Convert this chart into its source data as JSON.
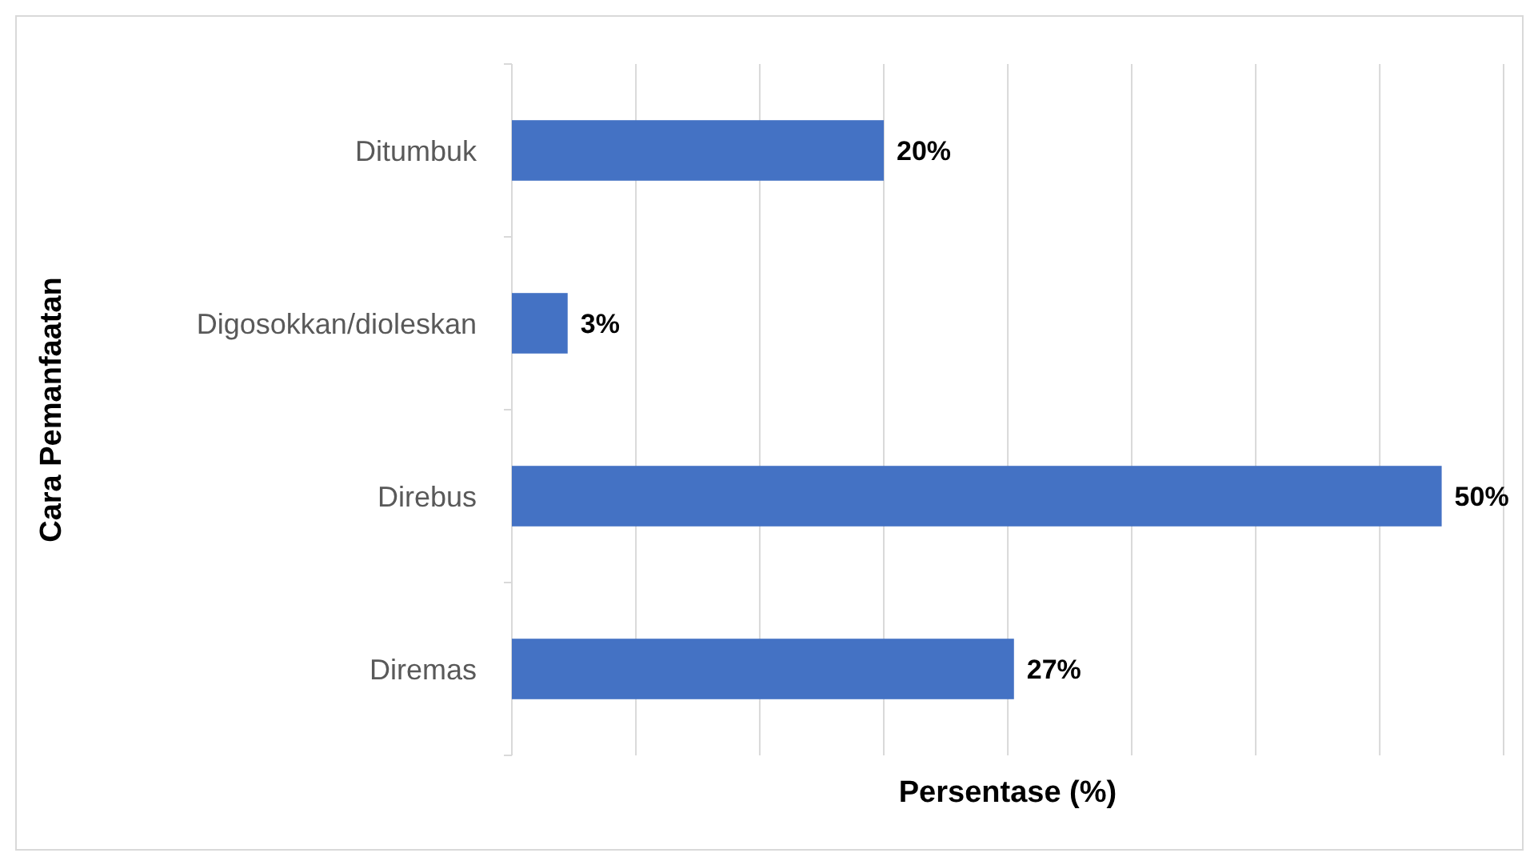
{
  "chart_data": {
    "type": "bar",
    "orientation": "horizontal",
    "categories": [
      "Ditumbuk",
      "Digosokkan/dioleskan",
      "Direbus",
      "Diremas"
    ],
    "values": [
      20,
      3,
      50,
      27
    ],
    "value_labels": [
      "20%",
      "3%",
      "50%",
      "27%"
    ],
    "color": "#4472c4",
    "xlabel": "Persentase (%)",
    "ylabel": "Cara Pemanfaatan",
    "xlim": [
      0,
      53.33
    ],
    "xticks": [
      {
        "value": 0,
        "label": null
      },
      {
        "value": 6.67,
        "label": null
      },
      {
        "value": 13.33,
        "label": null
      },
      {
        "value": 20,
        "label": null
      },
      {
        "value": 26.67,
        "label": null
      },
      {
        "value": 33.33,
        "label": null
      },
      {
        "value": 40,
        "label": null
      },
      {
        "value": 46.67,
        "label": null
      },
      {
        "value": 53.33,
        "label": null
      }
    ],
    "tick_labels": "y",
    "grid": "x"
  }
}
